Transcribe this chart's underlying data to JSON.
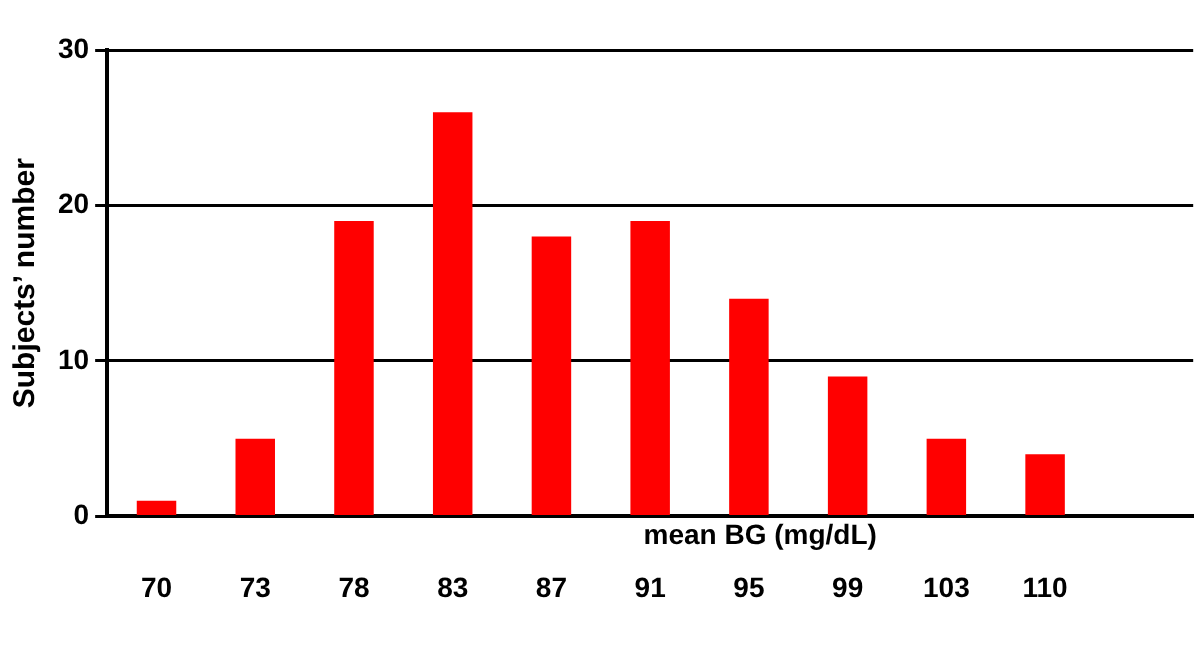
{
  "chart_data": {
    "type": "bar",
    "xlabel": "mean BG (mg/dL)",
    "ylabel": "Subjects’ number",
    "categories": [
      "70",
      "73",
      "78",
      "83",
      "87",
      "91",
      "95",
      "99",
      "103",
      "110",
      null
    ],
    "values": [
      1,
      5,
      19,
      26,
      18,
      19,
      14,
      9,
      5,
      4,
      null
    ],
    "color": "#ff0000",
    "ylim": [
      0,
      30
    ],
    "yticks": [
      0,
      10,
      20,
      30
    ],
    "grid": "y",
    "legend": false
  }
}
